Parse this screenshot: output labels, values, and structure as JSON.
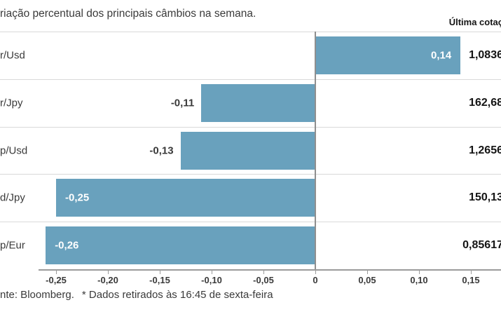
{
  "page": {
    "title": "riação percentual dos principais câmbios na semana.",
    "last_quote_header": "Última cotaç",
    "footer_source": "nte: Bloomberg.",
    "footer_note": "* Dados retirados às 16:45 de sexta-feira"
  },
  "colors": {
    "bar": "#69a1bd",
    "separator": "#d9d9d9",
    "axis_line": "#9b9b9b",
    "zero_line": "#8f8f8f",
    "text": "#3a3a3a",
    "value_text": "#141414",
    "bar_label_inside": "#ffffff",
    "bar_label_outside": "#3a3a3a"
  },
  "chart_data": {
    "type": "bar",
    "orientation": "horizontal",
    "title": "riação percentual dos principais câmbios na semana.",
    "categories": [
      "r/Usd",
      "r/Jpy",
      "p/Usd",
      "d/Jpy",
      "p/Eur"
    ],
    "values": [
      0.14,
      -0.11,
      -0.13,
      -0.25,
      -0.26
    ],
    "bar_labels": [
      "0,14",
      "-0,11",
      "-0,13",
      "-0,25",
      "-0,26"
    ],
    "bar_label_inside": [
      true,
      false,
      false,
      true,
      true
    ],
    "value_column_header": "Última cotaç",
    "last_quotes": [
      "1,0836",
      "162,68",
      "1,2656",
      "150,13",
      "0,85617"
    ],
    "x_ticks": [
      -0.25,
      -0.2,
      -0.15,
      -0.1,
      -0.05,
      0,
      0.05,
      0.1,
      0.15
    ],
    "x_tick_labels": [
      "-0,25",
      "-0,20",
      "-0,15",
      "-0,10",
      "-0,05",
      "0",
      "0,05",
      "0,10",
      "0,15"
    ],
    "xlim": [
      -0.305,
      0.179
    ],
    "grid": "zero-line-only",
    "legend": false,
    "source": "nte: Bloomberg.",
    "note": "* Dados retirados às 16:45 de sexta-feira"
  }
}
